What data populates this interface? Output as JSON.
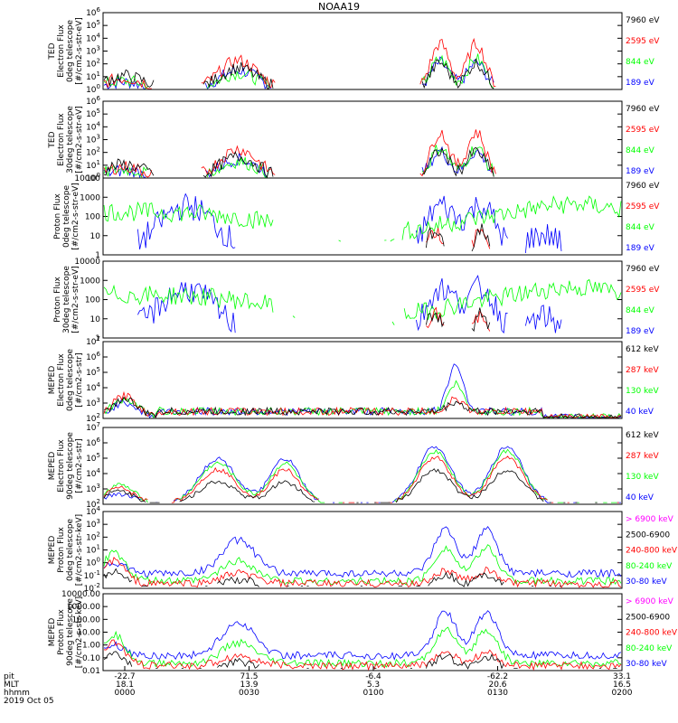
{
  "title": "NOAA19",
  "colors": {
    "black": "#000000",
    "red": "#ff0000",
    "green": "#00ff00",
    "blue": "#0000ff",
    "magenta": "#ff00ff"
  },
  "chart_data": {
    "type": "line",
    "title": "NOAA19",
    "x_ticks": {
      "row_labels": [
        "pit",
        "MLT",
        "hhmm",
        "2019 Oct 05"
      ],
      "columns": [
        {
          "pit": "-22.7",
          "mlt": "18.1",
          "hhmm": "0000"
        },
        {
          "pit": "71.5",
          "mlt": "13.9",
          "hhmm": "0030"
        },
        {
          "pit": "-6.4",
          "mlt": "5.3",
          "hhmm": "0100"
        },
        {
          "pit": "-62.2",
          "mlt": "20.6",
          "hhmm": "0130"
        },
        {
          "pit": "33.1",
          "mlt": "16.5",
          "hhmm": "0200"
        }
      ]
    },
    "panels": [
      {
        "ylabel": [
          "TED",
          "Electron Flux",
          "0deg telescope",
          "[#/cm2-s-str-eV]"
        ],
        "log": true,
        "ylim": [
          1,
          1000000
        ],
        "tick_labels": [
          "10^0",
          "10^1",
          "10^2",
          "10^3",
          "10^4",
          "10^5",
          "10^6"
        ],
        "legend": [
          {
            "label": "7960 eV",
            "color": "#000000"
          },
          {
            "label": "2595 eV",
            "color": "#ff0000"
          },
          {
            "label": "844 eV",
            "color": "#00ff00"
          },
          {
            "label": "189 eV",
            "color": "#0000ff"
          }
        ]
      },
      {
        "ylabel": [
          "TED",
          "Electron Flux",
          "30deg telescope",
          "[#/cm2-s-str-eV]"
        ],
        "log": true,
        "ylim": [
          1,
          1000000
        ],
        "tick_labels": [
          "10^0",
          "10^1",
          "10^2",
          "10^3",
          "10^4",
          "10^5",
          "10^6"
        ],
        "legend": [
          {
            "label": "7960 eV",
            "color": "#000000"
          },
          {
            "label": "2595 eV",
            "color": "#ff0000"
          },
          {
            "label": "844 eV",
            "color": "#00ff00"
          },
          {
            "label": "189 eV",
            "color": "#0000ff"
          }
        ]
      },
      {
        "ylabel": [
          "Proton Flux",
          "0deg telescope",
          "[#/cm2-s-str-eV]"
        ],
        "log": true,
        "ylim": [
          1,
          10000
        ],
        "tick_labels": [
          "1",
          "10",
          "100",
          "1000",
          "10000"
        ],
        "legend": [
          {
            "label": "7960 eV",
            "color": "#000000"
          },
          {
            "label": "2595 eV",
            "color": "#ff0000"
          },
          {
            "label": "844 eV",
            "color": "#00ff00"
          },
          {
            "label": "189 eV",
            "color": "#0000ff"
          }
        ]
      },
      {
        "ylabel": [
          "Proton Flux",
          "30deg telescope",
          "[#/cm2-s-str-eV]"
        ],
        "log": true,
        "ylim": [
          1,
          10000
        ],
        "tick_labels": [
          "1",
          "10",
          "100",
          "1000",
          "10000"
        ],
        "legend": [
          {
            "label": "7960 eV",
            "color": "#000000"
          },
          {
            "label": "2595 eV",
            "color": "#ff0000"
          },
          {
            "label": "844 eV",
            "color": "#00ff00"
          },
          {
            "label": "189 eV",
            "color": "#0000ff"
          }
        ]
      },
      {
        "ylabel": [
          "MEPED",
          "Electron Flux",
          "0deg telescope",
          "[#/cm2-s-str]"
        ],
        "log": true,
        "ylim": [
          100,
          10000000
        ],
        "tick_labels": [
          "10^2",
          "10^3",
          "10^4",
          "10^5",
          "10^6",
          "10^7"
        ],
        "legend": [
          {
            "label": "612 keV",
            "color": "#000000"
          },
          {
            "label": "287 keV",
            "color": "#ff0000"
          },
          {
            "label": "130 keV",
            "color": "#00ff00"
          },
          {
            "label": "40 keV",
            "color": "#0000ff"
          }
        ]
      },
      {
        "ylabel": [
          "MEPED",
          "Electron Flux",
          "90deg telescope",
          "[#/cm2-s-str]"
        ],
        "log": true,
        "ylim": [
          100,
          10000000
        ],
        "tick_labels": [
          "10^2",
          "10^3",
          "10^4",
          "10^5",
          "10^6",
          "10^7"
        ],
        "legend": [
          {
            "label": "612 keV",
            "color": "#000000"
          },
          {
            "label": "287 keV",
            "color": "#ff0000"
          },
          {
            "label": "130 keV",
            "color": "#00ff00"
          },
          {
            "label": "40 keV",
            "color": "#0000ff"
          }
        ]
      },
      {
        "ylabel": [
          "MEPED",
          "Proton Flux",
          "0deg telescope",
          "[#/cm2-s-str-keV]"
        ],
        "log": true,
        "ylim": [
          0.01,
          10000
        ],
        "tick_labels": [
          "10^-2",
          "10^-1",
          "10^0",
          "10^1",
          "10^2",
          "10^3",
          "10^4"
        ],
        "legend": [
          {
            "label": "> 6900 keV",
            "color": "#ff00ff"
          },
          {
            "label": "2500-6900",
            "color": "#000000"
          },
          {
            "label": "240-800 keV",
            "color": "#ff0000"
          },
          {
            "label": "80-240 keV",
            "color": "#00ff00"
          },
          {
            "label": "30-80 keV",
            "color": "#0000ff"
          }
        ]
      },
      {
        "ylabel": [
          "MEPED",
          "Proton Flux",
          "90deg telescope",
          "[#/cm2-s-str-keV]"
        ],
        "log": true,
        "ylim": [
          0.01,
          10000
        ],
        "tick_labels": [
          "0.01",
          "0.10",
          "1.00",
          "10.00",
          "100.00",
          "1000.00",
          "10000.00"
        ],
        "legend": [
          {
            "label": "> 6900 keV",
            "color": "#ff00ff"
          },
          {
            "label": "2500-6900",
            "color": "#000000"
          },
          {
            "label": "240-800 keV",
            "color": "#ff0000"
          },
          {
            "label": "80-240 keV",
            "color": "#00ff00"
          },
          {
            "label": "30-80 keV",
            "color": "#0000ff"
          }
        ]
      }
    ]
  }
}
